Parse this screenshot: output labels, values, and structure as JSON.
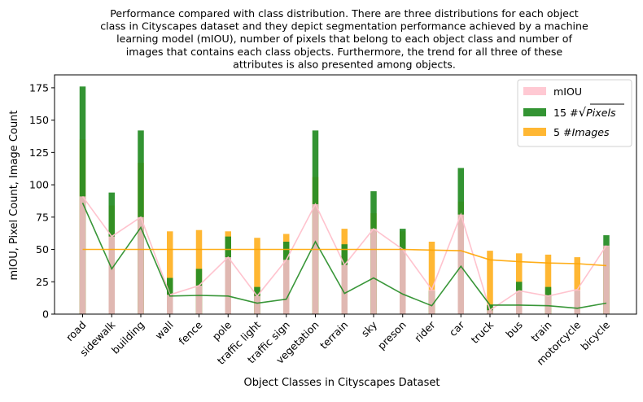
{
  "chart_data": {
    "type": "bar",
    "title_lines": [
      "Performance compared with class distribution. There are three distributions for each object",
      "class in Cityscapes dataset and they depict segmentation performance achieved by a machine",
      "learning model (mIOU), number of pixels that belong to each object class and number of",
      "images that contains each class objects. Furthermore, the trend for all three of these",
      "attributes is also presented among objects."
    ],
    "xlabel": "Object Classes in Cityscapes Dataset",
    "ylabel": "mIOU, Pixel Count, Image Count",
    "ylim": [
      0,
      185
    ],
    "yticks": [
      0,
      25,
      50,
      75,
      100,
      125,
      150,
      175
    ],
    "categories": [
      "road",
      "sidewalk",
      "building",
      "wall",
      "fence",
      "pole",
      "traffic light",
      "traffic sign",
      "vegetation",
      "terrain",
      "sky",
      "preson",
      "rider",
      "car",
      "truck",
      "bus",
      "train",
      "motorcycle",
      "bicycle"
    ],
    "series": [
      {
        "name": "mIOU",
        "kind": "bar",
        "color": "#ffc0cb",
        "opacity": 0.85,
        "values": [
          91,
          60,
          75,
          15,
          22,
          44,
          14,
          42,
          85,
          38,
          66,
          50,
          19,
          77,
          3,
          18,
          14,
          19,
          53
        ]
      },
      {
        "name": "15 #√Pixels",
        "kind": "bar",
        "color": "#228b22",
        "opacity": 0.92,
        "values": [
          176,
          94,
          142,
          28,
          35,
          60,
          21,
          56,
          142,
          54,
          95,
          66,
          18,
          113,
          7,
          25,
          21,
          18,
          61
        ]
      },
      {
        "name": "5 #Images",
        "kind": "bar",
        "color": "#ffa500",
        "opacity": 0.8,
        "values": [
          135,
          84,
          117,
          64,
          65,
          64,
          59,
          62,
          106,
          66,
          78,
          64,
          56,
          87,
          49,
          47,
          46,
          44,
          52
        ]
      }
    ],
    "trend_lines": [
      {
        "name": "mIOU trend",
        "color": "#ffc0cb",
        "values": [
          91,
          60,
          75,
          15,
          22,
          44,
          14,
          42,
          85,
          38,
          66,
          50,
          19,
          77,
          3,
          18,
          14,
          19,
          53
        ]
      },
      {
        "name": "pixels trend",
        "color": "#228b22",
        "values": [
          86,
          35,
          67,
          14,
          14.5,
          14,
          8.5,
          11.5,
          56,
          16,
          28,
          15.5,
          6.5,
          37,
          7,
          7,
          6.5,
          4.5,
          8.5
        ]
      },
      {
        "name": "images trend",
        "color": "#ffa500",
        "values": [
          50,
          50,
          50,
          50,
          50,
          50,
          50,
          50,
          50,
          50,
          50,
          50,
          49.5,
          49,
          42,
          40.5,
          39.5,
          39,
          37.5
        ]
      }
    ],
    "legend": {
      "position": "top-right",
      "entries": [
        {
          "label_plain": "mIOU",
          "color": "#ffc0cb"
        },
        {
          "label_prefix": "15 #",
          "radical": "√",
          "label_italic": "Pixels",
          "color": "#228b22"
        },
        {
          "label_prefix": "5 #",
          "label_italic": "Images",
          "color": "#ffa500"
        }
      ]
    },
    "grid": false
  }
}
